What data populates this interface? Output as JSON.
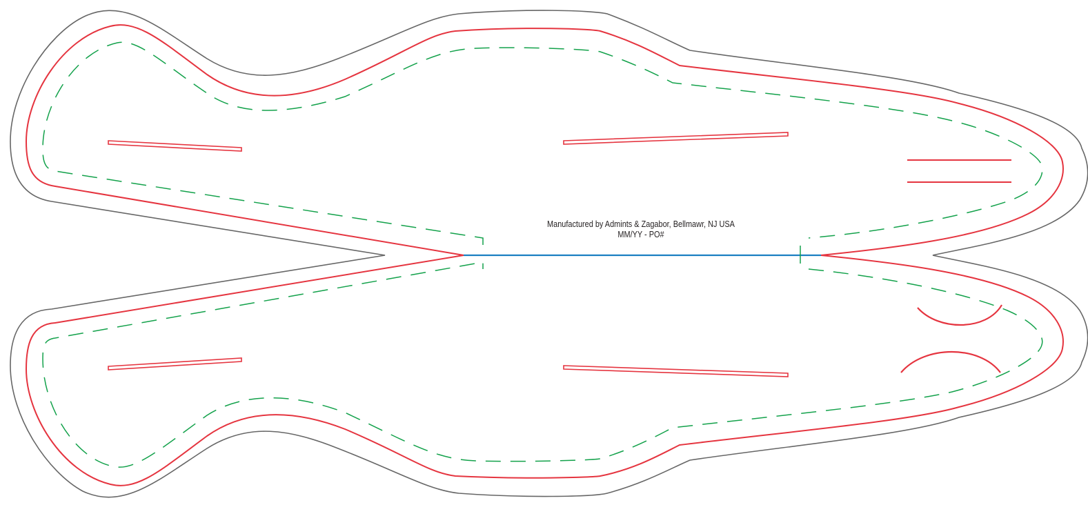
{
  "colors": {
    "outer_bleed": "#666666",
    "cut_line": "#e5343f",
    "safe_area": "#12a14a",
    "fold_line": "#1a7fc1",
    "text": "#231f20"
  },
  "imprint": {
    "line1": "Manufactured by Admints & Zagabor, Bellmawr, NJ USA",
    "line2": "MM/YY  -  PO#"
  }
}
